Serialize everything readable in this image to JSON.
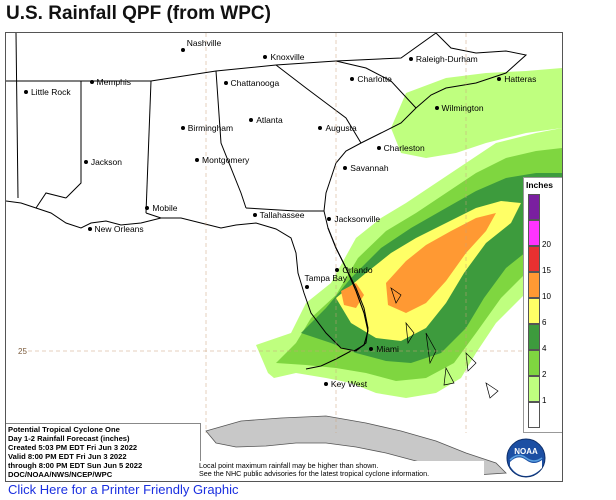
{
  "title": "U.S. Rainfall QPF (from WPC)",
  "map": {
    "cities": [
      {
        "name": "Nashville",
        "lon": -86.8,
        "lat": 36.2
      },
      {
        "name": "Knoxville",
        "lon": -83.9,
        "lat": 35.96
      },
      {
        "name": "Raleigh-Durham",
        "lon": -78.8,
        "lat": 35.9
      },
      {
        "name": "Little Rock",
        "lon": -92.3,
        "lat": 34.75
      },
      {
        "name": "Memphis",
        "lon": -90.0,
        "lat": 35.1
      },
      {
        "name": "Chattanooga",
        "lon": -85.3,
        "lat": 35.05
      },
      {
        "name": "Charlotte",
        "lon": -80.85,
        "lat": 35.2
      },
      {
        "name": "Hatteras",
        "lon": -75.7,
        "lat": 35.2
      },
      {
        "name": "Wilmington",
        "lon": -77.9,
        "lat": 34.2
      },
      {
        "name": "Birmingham",
        "lon": -86.8,
        "lat": 33.5
      },
      {
        "name": "Atlanta",
        "lon": -84.4,
        "lat": 33.75
      },
      {
        "name": "Augusta",
        "lon": -81.97,
        "lat": 33.47
      },
      {
        "name": "Charleston",
        "lon": -79.93,
        "lat": 32.78
      },
      {
        "name": "Jackson",
        "lon": -90.2,
        "lat": 32.3
      },
      {
        "name": "Montgomery",
        "lon": -86.3,
        "lat": 32.37
      },
      {
        "name": "Savannah",
        "lon": -81.1,
        "lat": 32.08
      },
      {
        "name": "Mobile",
        "lon": -88.04,
        "lat": 30.7
      },
      {
        "name": "Tallahassee",
        "lon": -84.28,
        "lat": 30.44
      },
      {
        "name": "Jacksonville",
        "lon": -81.66,
        "lat": 30.33
      },
      {
        "name": "New Orleans",
        "lon": -90.07,
        "lat": 29.95
      },
      {
        "name": "Orlando",
        "lon": -81.38,
        "lat": 28.54
      },
      {
        "name": "Tampa Bay",
        "lon": -82.46,
        "lat": 27.95
      },
      {
        "name": "Miami",
        "lon": -80.19,
        "lat": 25.77
      },
      {
        "name": "Key West",
        "lon": -81.78,
        "lat": 24.56
      }
    ],
    "latitude_label": "25",
    "colors": {
      "land": "#ffffff",
      "water": "#ffffff",
      "cuba": "#c8c8c8",
      "boundary": "#000000"
    }
  },
  "legend": {
    "title": "Inches",
    "unit": "in",
    "bins": [
      {
        "label": "1",
        "color": "#bfff7f"
      },
      {
        "label": "2",
        "color": "#7fd640"
      },
      {
        "label": "4",
        "color": "#3d9b3d"
      },
      {
        "label": "6",
        "color": "#ffff66"
      },
      {
        "label": "10",
        "color": "#ff9933"
      },
      {
        "label": "15",
        "color": "#e83030"
      },
      {
        "label": "20",
        "color": "#ff33ff"
      },
      {
        "label": "",
        "color": "#7a1fa0"
      }
    ],
    "top_swatch_color": "#7a1fa0"
  },
  "info": {
    "line1": "Potential Tropical Cyclone One",
    "line2": "Day 1-2 Rainfall Forecast (inches)",
    "line3": "Created 5:03 PM EDT Fri Jun 3 2022",
    "line4": "Valid 8:00 PM EDT Fri Jun 3 2022",
    "line5": "through 8:00 PM EDT Sun Jun 5 2022",
    "line6": "DOC/NOAA/NWS/NCEP/WPC"
  },
  "note": {
    "line1": "Local point maximum rainfall may be higher than shown.",
    "line2": "See the NHC public advisories for the latest tropical cyclone information."
  },
  "logo_text": "NOAA",
  "printer_link": "Click Here for a Printer Friendly Graphic"
}
